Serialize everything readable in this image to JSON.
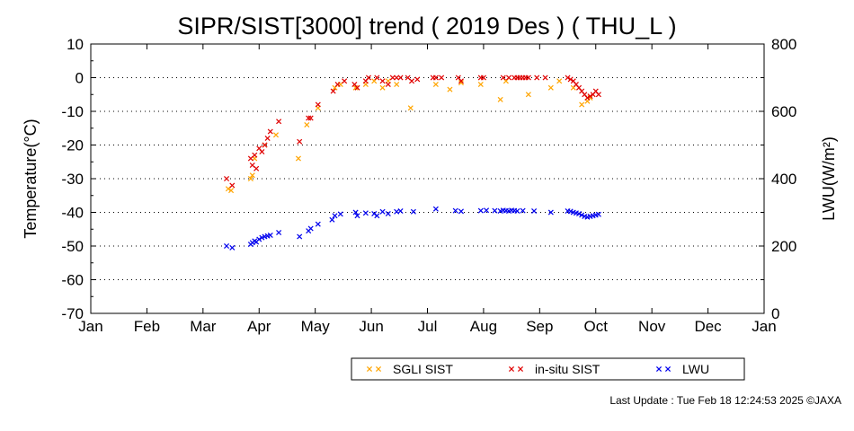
{
  "chart_data": {
    "type": "scatter",
    "title": "SIPR/SIST[3000] trend ( 2019 Des ) ( THU_L )",
    "ylabel": "Temperature(°C)",
    "ylabel_right": "LWU(W/m²)",
    "ylim": [
      -70,
      10
    ],
    "ylim_right": [
      0,
      800
    ],
    "yticks": [
      10,
      0,
      -10,
      -20,
      -30,
      -40,
      -50,
      -60,
      -70
    ],
    "yticks_right": [
      800,
      600,
      400,
      200,
      0
    ],
    "xlim": [
      0,
      12
    ],
    "xtick_labels": [
      "Jan",
      "Feb",
      "Mar",
      "Apr",
      "May",
      "Jun",
      "Jul",
      "Aug",
      "Sep",
      "Oct",
      "Nov",
      "Dec",
      "Jan"
    ],
    "grid": "dotted horizontal",
    "legend_position": "bottom-right",
    "x_unit": "month",
    "series": [
      {
        "name": "SGLI SIST",
        "color": "#ffa500",
        "axis": "left",
        "x": [
          2.45,
          2.5,
          2.85,
          2.88,
          2.92,
          3.1,
          3.3,
          3.7,
          3.85,
          4.05,
          4.35,
          4.45,
          4.72,
          4.9,
          5.05,
          5.2,
          5.3,
          5.45,
          5.7,
          6.15,
          6.4,
          6.6,
          6.95,
          7.3,
          7.4,
          7.8,
          8.2,
          8.35,
          8.6,
          8.75,
          8.85,
          8.9
        ],
        "y": [
          -33,
          -33.5,
          -30,
          -29,
          -24,
          -20,
          -17,
          -24,
          -14,
          -9,
          -3,
          -2,
          -3,
          -2,
          -1,
          -3,
          -1,
          -2,
          -9,
          -2,
          -3.5,
          -1.5,
          -2,
          -6.5,
          -1,
          -5,
          -3,
          -1,
          -3,
          -8,
          -7,
          -6
        ]
      },
      {
        "name": "in-situ SIST",
        "color": "#e00000",
        "axis": "left",
        "x": [
          2.42,
          2.52,
          2.85,
          2.88,
          2.92,
          2.95,
          3.0,
          3.05,
          3.1,
          3.15,
          3.2,
          3.35,
          3.72,
          3.88,
          3.92,
          4.05,
          4.32,
          4.4,
          4.52,
          4.7,
          4.75,
          4.9,
          4.95,
          5.1,
          5.2,
          5.3,
          5.38,
          5.45,
          5.52,
          5.65,
          5.72,
          5.82,
          6.1,
          6.15,
          6.25,
          6.55,
          6.6,
          6.95,
          7.0,
          7.35,
          7.45,
          7.55,
          7.6,
          7.65,
          7.7,
          7.75,
          7.8,
          7.95,
          8.1,
          8.5,
          8.55,
          8.6,
          8.65,
          8.7,
          8.75,
          8.8,
          8.85,
          8.9,
          8.95,
          9.0,
          9.05
        ],
        "y": [
          -30,
          -32,
          -24,
          -26,
          -23,
          -27,
          -21,
          -22,
          -20,
          -18,
          -16,
          -13,
          -19,
          -12,
          -12,
          -8,
          -4,
          -2,
          -1,
          -2,
          -3,
          -1,
          0,
          0,
          -1,
          -2,
          0,
          0,
          0,
          0,
          -1,
          -0.5,
          0,
          0,
          0,
          0,
          -1,
          0,
          0,
          0,
          0,
          0,
          0,
          0,
          0,
          0,
          0,
          0,
          0,
          0,
          -0.5,
          -1,
          -2,
          -3,
          -4,
          -5,
          -6,
          -5.5,
          -5,
          -4,
          -5
        ]
      },
      {
        "name": "LWU",
        "color": "#0000ee",
        "axis": "right",
        "x": [
          2.42,
          2.52,
          2.85,
          2.88,
          2.92,
          2.95,
          3.0,
          3.05,
          3.1,
          3.15,
          3.2,
          3.35,
          3.72,
          3.88,
          3.92,
          4.05,
          4.3,
          4.35,
          4.45,
          4.72,
          4.75,
          4.9,
          5.05,
          5.1,
          5.2,
          5.3,
          5.45,
          5.52,
          5.75,
          6.15,
          6.5,
          6.6,
          6.95,
          7.05,
          7.2,
          7.3,
          7.35,
          7.4,
          7.45,
          7.5,
          7.55,
          7.6,
          7.7,
          7.9,
          8.2,
          8.5,
          8.55,
          8.6,
          8.65,
          8.7,
          8.75,
          8.8,
          8.85,
          8.9,
          8.95,
          9.0,
          9.05
        ],
        "y": [
          200,
          195,
          205,
          210,
          215,
          212,
          220,
          225,
          228,
          230,
          232,
          240,
          228,
          245,
          252,
          265,
          278,
          290,
          295,
          300,
          290,
          298,
          296,
          290,
          302,
          296,
          302,
          304,
          302,
          310,
          305,
          303,
          305,
          306,
          305,
          304,
          306,
          305,
          304,
          306,
          305,
          304,
          305,
          304,
          300,
          304,
          303,
          300,
          298,
          296,
          292,
          288,
          286,
          288,
          290,
          292,
          294
        ]
      }
    ]
  },
  "footer": {
    "last_update": "Last Update : Tue Feb 18 12:24:53 2025  ©JAXA"
  }
}
